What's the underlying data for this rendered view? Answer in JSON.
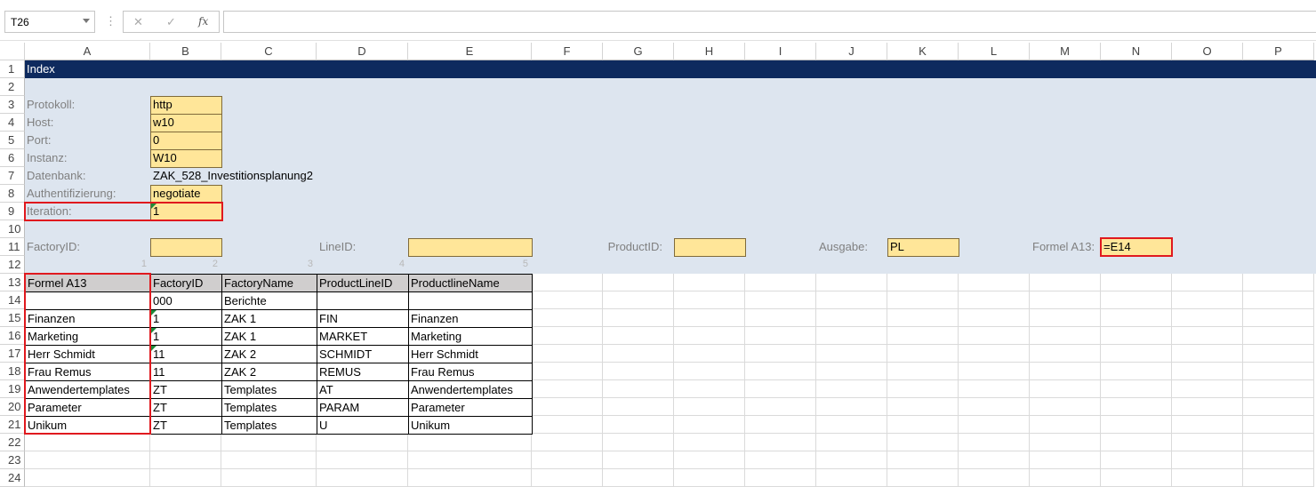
{
  "name_box": "T26",
  "formula_bar": {
    "function_label": "fx"
  },
  "column_headers": [
    "A",
    "B",
    "C",
    "D",
    "E",
    "F",
    "G",
    "H",
    "I",
    "J",
    "K",
    "L",
    "M",
    "N",
    "O",
    "P"
  ],
  "row_headers": [
    1,
    2,
    3,
    4,
    5,
    6,
    7,
    8,
    9,
    10,
    11,
    12,
    13,
    14,
    15,
    16,
    17,
    18,
    19,
    20,
    21,
    22,
    23,
    24
  ],
  "title": "Index",
  "settings": [
    {
      "label": "Protokoll:",
      "value": "http"
    },
    {
      "label": "Host:",
      "value": "w10"
    },
    {
      "label": "Port:",
      "value": "0"
    },
    {
      "label": "Instanz:",
      "value": "W10"
    },
    {
      "label": "Datenbank:",
      "value": "ZAK_528_Investitionsplanung2"
    },
    {
      "label": "Authentifizierung:",
      "value": "negotiate"
    },
    {
      "label": "Iteration:",
      "value": "1"
    }
  ],
  "filters": [
    {
      "label": "FactoryID:",
      "value": null
    },
    {
      "label": "LineID:",
      "value": null
    },
    {
      "label": "ProductID:",
      "value": null
    },
    {
      "label": "Ausgabe:",
      "value": "PL"
    },
    {
      "label": "Formel A13:",
      "value": "=E14"
    }
  ],
  "column_index_markers": [
    1,
    2,
    3,
    4,
    5
  ],
  "table": {
    "headers": [
      "Formel A13",
      "FactoryID",
      "FactoryName",
      "ProductLineID",
      "ProductlineName"
    ],
    "rows": [
      [
        null,
        "000",
        "Berichte",
        null,
        null
      ],
      [
        "Finanzen",
        "1",
        "ZAK 1",
        "FIN",
        "Finanzen"
      ],
      [
        "Marketing",
        "1",
        "ZAK 1",
        "MARKET",
        "Marketing"
      ],
      [
        "Herr Schmidt",
        "11",
        "ZAK 2",
        "SCHMIDT",
        "Herr Schmidt"
      ],
      [
        "Frau Remus",
        "11",
        "ZAK 2",
        "REMUS",
        "Frau Remus"
      ],
      [
        "Anwendertemplates",
        "ZT",
        "Templates",
        "AT",
        "Anwendertemplates"
      ],
      [
        "Parameter",
        "ZT",
        "Templates",
        "PARAM",
        "Parameter"
      ],
      [
        "Unikum",
        "ZT",
        "Templates",
        "U",
        "Unikum"
      ]
    ]
  }
}
